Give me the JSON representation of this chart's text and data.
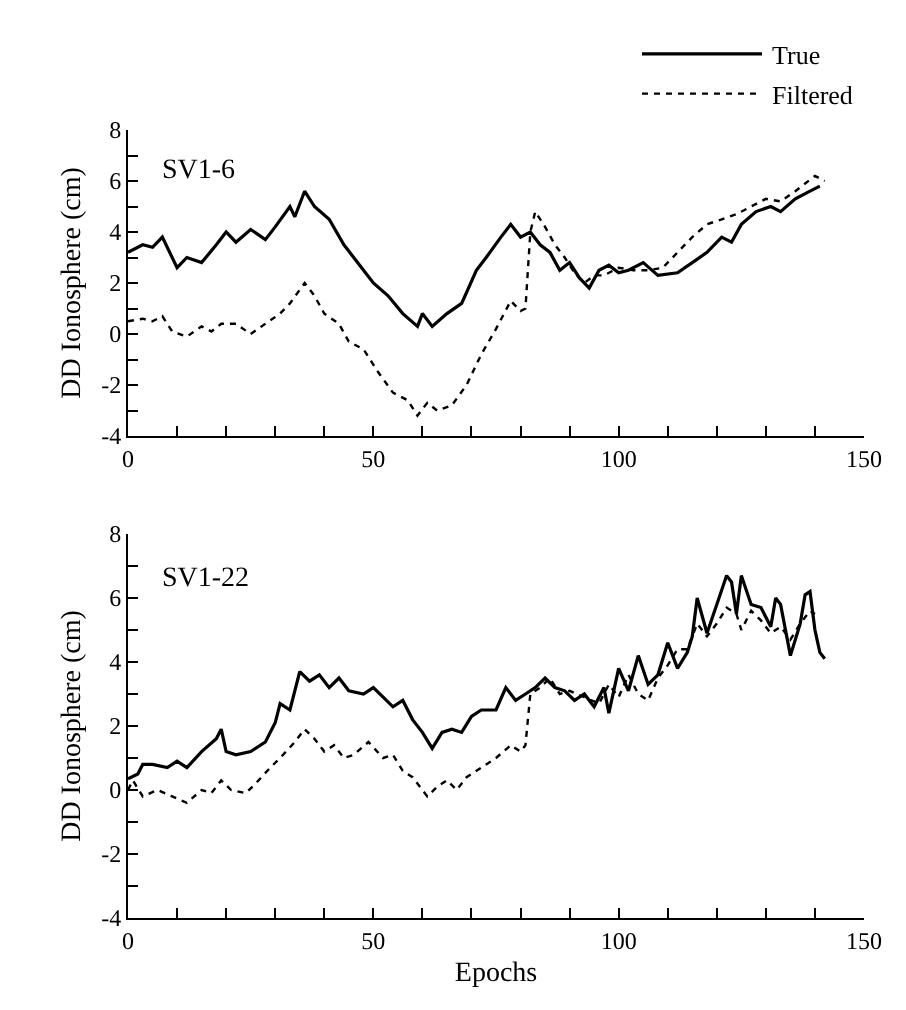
{
  "chart_data": [
    {
      "type": "line",
      "annotations": [
        "SV1-6"
      ],
      "ylabel": "DD Ionosphere (cm)",
      "legend": "top right",
      "grid": false,
      "marker": "none",
      "xlim": [
        0,
        150
      ],
      "xticks": [
        0,
        {
          "value": 10,
          "label": null
        },
        {
          "value": 20,
          "label": null
        },
        {
          "value": 30,
          "label": null
        },
        {
          "value": 40,
          "label": null
        },
        50,
        {
          "value": 60,
          "label": null
        },
        {
          "value": 70,
          "label": null
        },
        {
          "value": 80,
          "label": null
        },
        {
          "value": 90,
          "label": null
        },
        100,
        {
          "value": 110,
          "label": null
        },
        {
          "value": 120,
          "label": null
        },
        {
          "value": 130,
          "label": null
        },
        {
          "value": 140,
          "label": null
        },
        150
      ],
      "ylim": [
        -4,
        8
      ],
      "yticks": [
        -4,
        {
          "value": -3,
          "label": null
        },
        -2,
        {
          "value": -1,
          "label": null
        },
        0,
        {
          "value": 1,
          "label": null
        },
        2,
        {
          "value": 3,
          "label": null
        },
        4,
        {
          "value": 5,
          "label": null
        },
        6,
        {
          "value": 7,
          "label": null
        },
        8
      ],
      "series": [
        {
          "name": "True",
          "color": "#000000",
          "line_style": "solid",
          "x": [
            0,
            3,
            5,
            7,
            10,
            12,
            15,
            18,
            20,
            22,
            25,
            28,
            30,
            33,
            34,
            36,
            38,
            41,
            44,
            46,
            50,
            53,
            56,
            59,
            60,
            62,
            65,
            68,
            71,
            73,
            76,
            78,
            80,
            82,
            84,
            86,
            88,
            90,
            92,
            94,
            96,
            98,
            100,
            102,
            105,
            108,
            112,
            115,
            118,
            121,
            123,
            125,
            128,
            131,
            133,
            136,
            139,
            141
          ],
          "values": [
            3.2,
            3.5,
            3.4,
            3.8,
            2.6,
            3.0,
            2.8,
            3.5,
            4.0,
            3.6,
            4.1,
            3.7,
            4.2,
            5.0,
            4.6,
            5.6,
            5.0,
            4.5,
            3.5,
            3.0,
            2.0,
            1.5,
            0.8,
            0.3,
            0.8,
            0.3,
            0.8,
            1.2,
            2.5,
            3.0,
            3.8,
            4.3,
            3.8,
            4.0,
            3.5,
            3.2,
            2.5,
            2.8,
            2.2,
            1.8,
            2.5,
            2.7,
            2.4,
            2.5,
            2.8,
            2.3,
            2.4,
            2.8,
            3.2,
            3.8,
            3.6,
            4.3,
            4.8,
            5.0,
            4.8,
            5.3,
            5.6,
            5.8
          ]
        },
        {
          "name": "Filtered",
          "color": "#000000",
          "line_style": "dotted",
          "x": [
            0,
            3,
            5,
            7,
            9,
            12,
            15,
            17,
            19,
            22,
            25,
            28,
            31,
            33,
            36,
            38,
            40,
            43,
            45,
            48,
            51,
            54,
            57,
            59,
            61,
            63,
            66,
            69,
            72,
            75,
            78,
            80,
            81,
            82,
            83,
            85,
            87,
            89,
            91,
            93,
            95,
            97,
            100,
            103,
            106,
            109,
            112,
            115,
            118,
            121,
            124,
            127,
            130,
            133,
            136,
            138,
            140,
            142
          ],
          "values": [
            0.5,
            0.6,
            0.5,
            0.7,
            0.1,
            -0.1,
            0.3,
            0.1,
            0.4,
            0.4,
            0.0,
            0.4,
            0.8,
            1.2,
            2.0,
            1.5,
            0.8,
            0.4,
            -0.3,
            -0.6,
            -1.5,
            -2.3,
            -2.6,
            -3.2,
            -2.7,
            -3.0,
            -2.8,
            -2.0,
            -0.8,
            0.2,
            1.3,
            0.9,
            1.0,
            4.0,
            4.8,
            4.2,
            3.5,
            3.0,
            2.4,
            2.0,
            2.3,
            2.3,
            2.6,
            2.5,
            2.5,
            2.6,
            3.2,
            3.8,
            4.3,
            4.5,
            4.7,
            5.0,
            5.3,
            5.2,
            5.6,
            5.9,
            6.2,
            6.0
          ]
        }
      ]
    },
    {
      "type": "line",
      "annotations": [
        "SV1-22"
      ],
      "xlabel": "Epochs",
      "ylabel": "DD Ionosphere (cm)",
      "grid": false,
      "marker": "none",
      "xlim": [
        0,
        150
      ],
      "xticks": [
        0,
        {
          "value": 10,
          "label": null
        },
        {
          "value": 20,
          "label": null
        },
        {
          "value": 30,
          "label": null
        },
        {
          "value": 40,
          "label": null
        },
        50,
        {
          "value": 60,
          "label": null
        },
        {
          "value": 70,
          "label": null
        },
        {
          "value": 80,
          "label": null
        },
        {
          "value": 90,
          "label": null
        },
        100,
        {
          "value": 110,
          "label": null
        },
        {
          "value": 120,
          "label": null
        },
        {
          "value": 130,
          "label": null
        },
        {
          "value": 140,
          "label": null
        },
        150
      ],
      "ylim": [
        -4,
        8
      ],
      "yticks": [
        -4,
        {
          "value": -3,
          "label": null
        },
        -2,
        {
          "value": -1,
          "label": null
        },
        0,
        {
          "value": 1,
          "label": null
        },
        2,
        {
          "value": 3,
          "label": null
        },
        4,
        {
          "value": 5,
          "label": null
        },
        6,
        {
          "value": 7,
          "label": null
        },
        8
      ],
      "series": [
        {
          "color": "#000000",
          "line_style": "solid",
          "x": [
            0,
            2,
            3,
            5,
            8,
            10,
            12,
            15,
            18,
            19,
            20,
            22,
            25,
            28,
            30,
            31,
            33,
            35,
            37,
            39,
            41,
            43,
            45,
            48,
            50,
            52,
            54,
            56,
            58,
            60,
            62,
            64,
            66,
            68,
            70,
            72,
            75,
            77,
            79,
            81,
            83,
            85,
            87,
            89,
            91,
            93,
            95,
            97,
            98,
            100,
            102,
            104,
            106,
            108,
            110,
            112,
            114,
            115,
            116,
            118,
            120,
            122,
            123,
            124,
            125,
            127,
            129,
            131,
            132,
            133,
            135,
            137,
            138,
            139,
            140,
            141,
            142
          ],
          "values": [
            0.35,
            0.5,
            0.8,
            0.8,
            0.7,
            0.9,
            0.7,
            1.2,
            1.6,
            1.9,
            1.2,
            1.1,
            1.2,
            1.5,
            2.1,
            2.7,
            2.5,
            3.7,
            3.4,
            3.6,
            3.2,
            3.5,
            3.1,
            3.0,
            3.2,
            2.9,
            2.6,
            2.8,
            2.2,
            1.8,
            1.3,
            1.8,
            1.9,
            1.8,
            2.3,
            2.5,
            2.5,
            3.2,
            2.8,
            3.0,
            3.2,
            3.5,
            3.2,
            3.1,
            2.8,
            3.0,
            2.6,
            3.2,
            2.4,
            3.8,
            3.1,
            4.2,
            3.3,
            3.6,
            4.6,
            3.8,
            4.3,
            4.8,
            6.0,
            4.9,
            5.8,
            6.7,
            6.5,
            5.5,
            6.7,
            5.8,
            5.7,
            5.1,
            6.0,
            5.8,
            4.2,
            5.2,
            6.1,
            6.2,
            5.0,
            4.3,
            4.1
          ]
        },
        {
          "color": "#000000",
          "line_style": "dotted",
          "x": [
            0,
            1,
            3,
            6,
            9,
            12,
            15,
            17,
            19,
            21,
            24,
            26,
            29,
            31,
            34,
            36,
            38,
            40,
            42,
            44,
            46,
            49,
            52,
            54,
            56,
            58,
            60,
            61,
            63,
            65,
            67,
            69,
            72,
            75,
            78,
            80,
            81,
            82,
            84,
            86,
            88,
            90,
            93,
            96,
            98,
            100,
            102,
            104,
            106,
            108,
            110,
            112,
            114,
            116,
            118,
            120,
            122,
            124,
            125,
            127,
            129,
            131,
            133,
            135,
            137,
            139,
            140
          ],
          "values": [
            0.0,
            0.3,
            -0.2,
            0.0,
            -0.2,
            -0.4,
            0.0,
            -0.1,
            0.3,
            0.0,
            -0.1,
            0.2,
            0.7,
            1.0,
            1.5,
            1.9,
            1.6,
            1.2,
            1.4,
            1.0,
            1.1,
            1.5,
            1.0,
            1.1,
            0.6,
            0.4,
            0.0,
            -0.2,
            0.1,
            0.3,
            0.0,
            0.4,
            0.7,
            1.0,
            1.4,
            1.2,
            1.4,
            3.0,
            3.2,
            3.5,
            3.0,
            3.1,
            2.9,
            2.7,
            3.3,
            2.9,
            3.6,
            3.0,
            2.8,
            3.5,
            3.9,
            4.4,
            4.4,
            5.2,
            4.8,
            5.2,
            5.7,
            5.5,
            5.0,
            5.6,
            5.3,
            4.9,
            5.1,
            4.7,
            5.2,
            5.6,
            5.5
          ]
        }
      ]
    }
  ]
}
